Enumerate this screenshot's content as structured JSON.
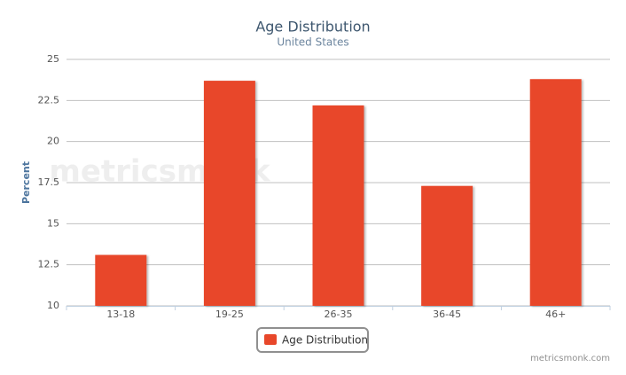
{
  "chart_data": {
    "type": "bar",
    "title": "Age Distribution",
    "subtitle": "United States",
    "y_label": "Percent",
    "watermark": "metricsmonk",
    "credit": "metricsmonk.com",
    "categories": [
      "13-18",
      "19-25",
      "26-35",
      "36-45",
      "46+"
    ],
    "series": [
      {
        "name": "Age Distribution",
        "color": "#e8472a",
        "values": [
          13.1,
          23.7,
          22.2,
          17.3,
          23.8
        ]
      }
    ],
    "ylim": [
      10,
      25
    ],
    "yticks": [
      10,
      12.5,
      15,
      17.5,
      20,
      22.5,
      25
    ],
    "grid": true,
    "legend": "bottom"
  }
}
